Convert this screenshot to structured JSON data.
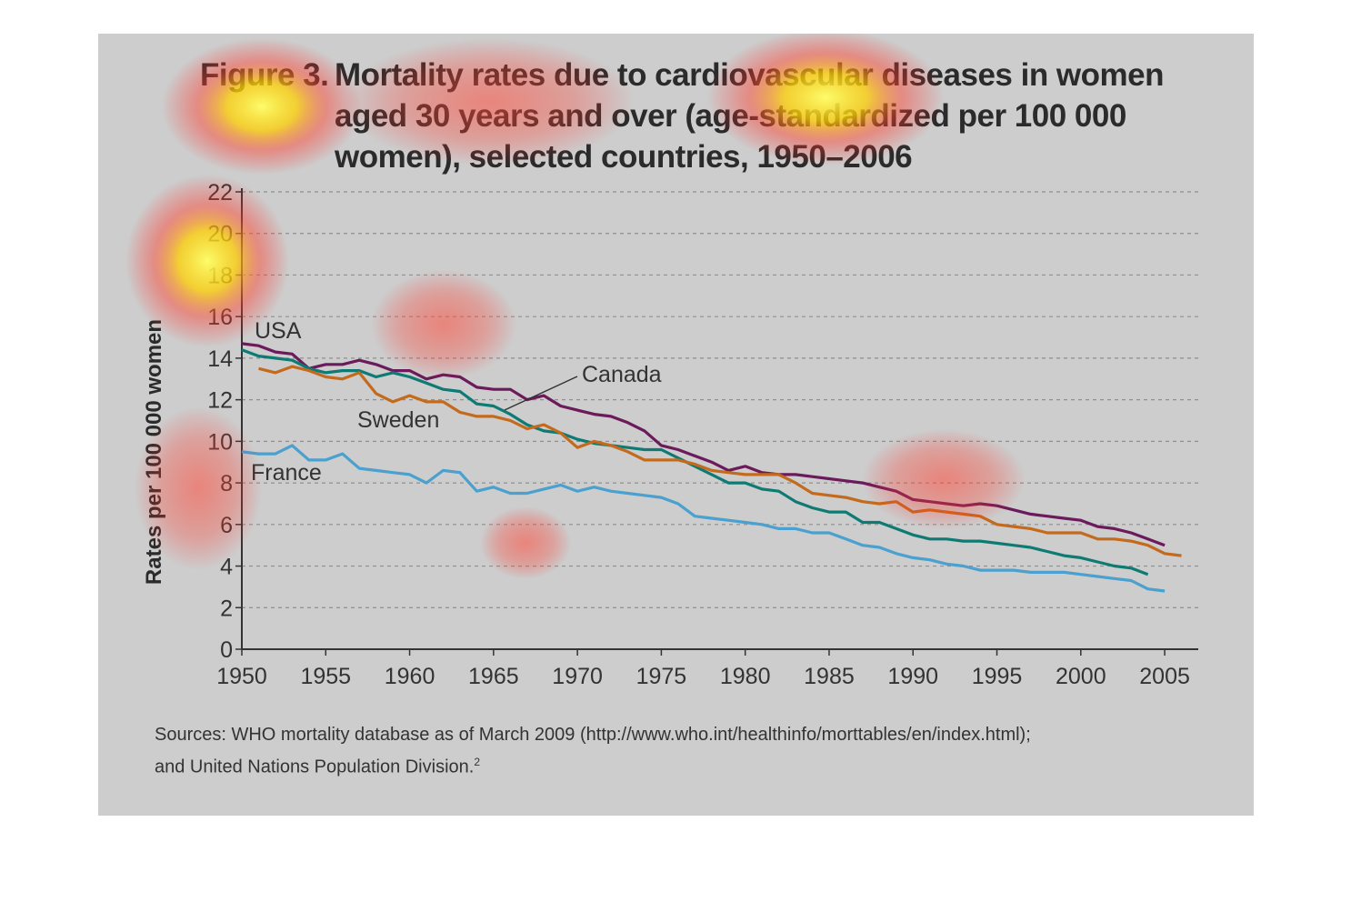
{
  "figure": {
    "number_label": "Figure 3.",
    "title_lines": [
      "Mortality rates due to cardiovascular diseases in women",
      "aged 30 years and over (age-standardized per 100 000",
      "women), selected countries, 1950–2006"
    ],
    "sources_lines": [
      "Sources: WHO mortality database as of March 2009 (http://www.who.int/healthinfo/morttables/en/index.html);",
      "and United Nations Population Division."
    ],
    "sources_superscript": "2"
  },
  "chart_data": {
    "type": "line",
    "title": "Figure 3. Mortality rates due to cardiovascular diseases in women aged 30 years and over (age-standardized per 100 000 women), selected countries, 1950–2006",
    "xlabel": "",
    "ylabel": "Rates per 100 000 women",
    "xlim": [
      1950,
      2007
    ],
    "ylim": [
      0,
      22
    ],
    "x_ticks": [
      1950,
      1955,
      1960,
      1965,
      1970,
      1975,
      1980,
      1985,
      1990,
      1995,
      2000,
      2005
    ],
    "y_ticks": [
      0,
      2,
      4,
      6,
      8,
      10,
      12,
      14,
      16,
      18,
      20,
      22
    ],
    "grid": "horizontal dashed",
    "colors": {
      "USA": "#6b1a5b",
      "Canada": "#0e7a74",
      "Sweden": "#c46a1c",
      "France": "#4aa0cf"
    },
    "series": [
      {
        "name": "USA",
        "x": [
          1950,
          1951,
          1952,
          1953,
          1954,
          1955,
          1956,
          1957,
          1958,
          1959,
          1960,
          1961,
          1962,
          1963,
          1964,
          1965,
          1966,
          1967,
          1968,
          1969,
          1970,
          1971,
          1972,
          1973,
          1974,
          1975,
          1976,
          1977,
          1978,
          1979,
          1980,
          1981,
          1982,
          1983,
          1984,
          1985,
          1986,
          1987,
          1988,
          1989,
          1990,
          1991,
          1992,
          1993,
          1994,
          1995,
          1996,
          1997,
          1998,
          1999,
          2000,
          2001,
          2002,
          2003,
          2004,
          2005
        ],
        "y": [
          14.7,
          14.6,
          14.3,
          14.2,
          13.5,
          13.7,
          13.7,
          13.9,
          13.7,
          13.4,
          13.4,
          13.0,
          13.2,
          13.1,
          12.6,
          12.5,
          12.5,
          12.0,
          12.2,
          11.7,
          11.5,
          11.3,
          11.2,
          10.9,
          10.5,
          9.8,
          9.6,
          9.3,
          9.0,
          8.6,
          8.8,
          8.5,
          8.4,
          8.4,
          8.3,
          8.2,
          8.1,
          8.0,
          7.8,
          7.6,
          7.2,
          7.1,
          7.0,
          6.9,
          7.0,
          6.9,
          6.7,
          6.5,
          6.4,
          6.3,
          6.2,
          5.9,
          5.8,
          5.6,
          5.3,
          5.0
        ]
      },
      {
        "name": "Canada",
        "x": [
          1950,
          1951,
          1952,
          1953,
          1954,
          1955,
          1956,
          1957,
          1958,
          1959,
          1960,
          1961,
          1962,
          1963,
          1964,
          1965,
          1966,
          1967,
          1968,
          1969,
          1970,
          1971,
          1972,
          1973,
          1974,
          1975,
          1976,
          1977,
          1978,
          1979,
          1980,
          1981,
          1982,
          1983,
          1984,
          1985,
          1986,
          1987,
          1988,
          1989,
          1990,
          1991,
          1992,
          1993,
          1994,
          1995,
          1996,
          1997,
          1998,
          1999,
          2000,
          2001,
          2002,
          2003,
          2004
        ],
        "y": [
          14.4,
          14.1,
          14.0,
          13.9,
          13.5,
          13.3,
          13.4,
          13.4,
          13.1,
          13.3,
          13.1,
          12.8,
          12.5,
          12.4,
          11.8,
          11.7,
          11.3,
          10.8,
          10.5,
          10.4,
          10.1,
          9.9,
          9.8,
          9.7,
          9.6,
          9.6,
          9.2,
          8.8,
          8.4,
          8.0,
          8.0,
          7.7,
          7.6,
          7.1,
          6.8,
          6.6,
          6.6,
          6.1,
          6.1,
          5.8,
          5.5,
          5.3,
          5.3,
          5.2,
          5.2,
          5.1,
          5.0,
          4.9,
          4.7,
          4.5,
          4.4,
          4.2,
          4.0,
          3.9,
          3.6
        ]
      },
      {
        "name": "Sweden",
        "x": [
          1951,
          1952,
          1953,
          1954,
          1955,
          1956,
          1957,
          1958,
          1959,
          1960,
          1961,
          1962,
          1963,
          1964,
          1965,
          1966,
          1967,
          1968,
          1969,
          1970,
          1971,
          1972,
          1973,
          1974,
          1975,
          1976,
          1977,
          1978,
          1979,
          1980,
          1981,
          1982,
          1983,
          1984,
          1985,
          1986,
          1987,
          1988,
          1989,
          1990,
          1991,
          1992,
          1993,
          1994,
          1995,
          1996,
          1997,
          1998,
          1999,
          2000,
          2001,
          2002,
          2003,
          2004,
          2005,
          2006
        ],
        "y": [
          13.5,
          13.3,
          13.6,
          13.4,
          13.1,
          13.0,
          13.3,
          12.3,
          11.9,
          12.2,
          11.9,
          11.9,
          11.4,
          11.2,
          11.2,
          11.0,
          10.6,
          10.8,
          10.4,
          9.7,
          10.0,
          9.8,
          9.5,
          9.1,
          9.1,
          9.1,
          8.9,
          8.6,
          8.5,
          8.4,
          8.4,
          8.4,
          8.0,
          7.5,
          7.4,
          7.3,
          7.1,
          7.0,
          7.1,
          6.6,
          6.7,
          6.6,
          6.5,
          6.4,
          6.0,
          5.9,
          5.8,
          5.6,
          5.6,
          5.6,
          5.3,
          5.3,
          5.2,
          5.0,
          4.6,
          4.5
        ]
      },
      {
        "name": "France",
        "x": [
          1950,
          1951,
          1952,
          1953,
          1954,
          1955,
          1956,
          1957,
          1958,
          1959,
          1960,
          1961,
          1962,
          1963,
          1964,
          1965,
          1966,
          1967,
          1968,
          1969,
          1970,
          1971,
          1972,
          1973,
          1974,
          1975,
          1976,
          1977,
          1978,
          1979,
          1980,
          1981,
          1982,
          1983,
          1984,
          1985,
          1986,
          1987,
          1988,
          1989,
          1990,
          1991,
          1992,
          1993,
          1994,
          1995,
          1996,
          1997,
          1998,
          1999,
          2000,
          2001,
          2002,
          2003,
          2004,
          2005
        ],
        "y": [
          9.5,
          9.4,
          9.4,
          9.8,
          9.1,
          9.1,
          9.4,
          8.7,
          8.6,
          8.5,
          8.4,
          8.0,
          8.6,
          8.5,
          7.6,
          7.8,
          7.5,
          7.5,
          7.7,
          7.9,
          7.6,
          7.8,
          7.6,
          7.5,
          7.4,
          7.3,
          7.0,
          6.4,
          6.3,
          6.2,
          6.1,
          6.0,
          5.8,
          5.8,
          5.6,
          5.6,
          5.3,
          5.0,
          4.9,
          4.6,
          4.4,
          4.3,
          4.1,
          4.0,
          3.8,
          3.8,
          3.8,
          3.7,
          3.7,
          3.7,
          3.6,
          3.5,
          3.4,
          3.3,
          2.9,
          2.8
        ]
      }
    ],
    "annotations": [
      {
        "text": "USA",
        "series": "USA"
      },
      {
        "text": "Canada",
        "series": "Canada"
      },
      {
        "text": "Sweden",
        "series": "Sweden"
      },
      {
        "text": "France",
        "series": "France"
      }
    ]
  }
}
